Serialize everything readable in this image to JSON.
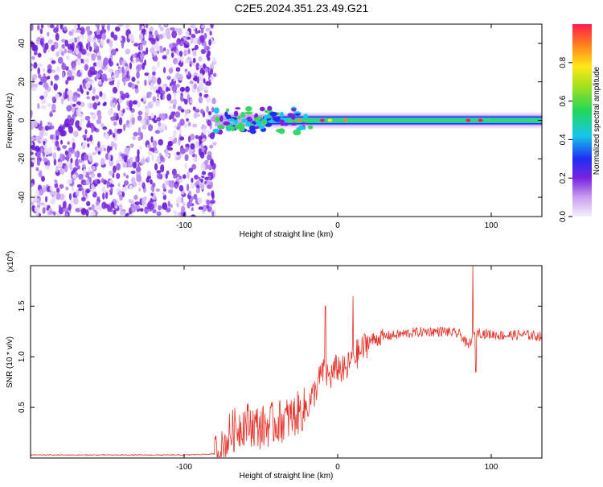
{
  "title": "C2E5.2024.351.23.49.G21",
  "chart_data": [
    {
      "type": "heatmap",
      "xlabel": "Height of straight line (km)",
      "ylabel": "Frequency (Hz)",
      "xlim": [
        -200,
        133
      ],
      "ylim": [
        -50,
        50
      ],
      "xticks": [
        -100,
        0,
        100
      ],
      "yticks": [
        -40,
        -20,
        0,
        20,
        40
      ],
      "noise_region_x": [
        -200,
        -80
      ],
      "signal_region_x": [
        -80,
        133
      ],
      "signal_center_frequency": 0,
      "colorbar": {
        "label": "Normalized spectral amplitude",
        "range": [
          0,
          1
        ],
        "ticks": [
          "0.0",
          "0.2",
          "0.4",
          "0.6",
          "0.8"
        ]
      }
    },
    {
      "type": "line",
      "xlabel": "Height of straight line (km)",
      "ylabel": "SNR (10 * v/v)",
      "multiplier": "(x10^4)",
      "multiplier_base": "(x10",
      "multiplier_exp": "4",
      "xlim": [
        -200,
        133
      ],
      "ylim": [
        0,
        1.9
      ],
      "xticks": [
        -100,
        0,
        100
      ],
      "yticks": [
        "0.5",
        "1.0",
        "1.5"
      ],
      "series": [
        {
          "color": "#e8322a",
          "x": [
            -200,
            -150,
            -100,
            -80,
            -75,
            -70,
            -60,
            -50,
            -40,
            -30,
            -20,
            -15,
            -10,
            -5,
            0,
            5,
            10,
            15,
            20,
            30,
            40,
            50,
            60,
            70,
            80,
            85,
            88,
            90,
            95,
            100,
            110,
            120,
            133
          ],
          "y": [
            0.03,
            0.03,
            0.03,
            0.04,
            0.07,
            0.25,
            0.35,
            0.3,
            0.35,
            0.4,
            0.5,
            0.65,
            0.85,
            0.8,
            0.9,
            0.85,
            1.0,
            1.05,
            1.15,
            1.2,
            1.22,
            1.24,
            1.25,
            1.25,
            1.22,
            1.1,
            1.2,
            1.25,
            1.23,
            1.22,
            1.21,
            1.22,
            1.2
          ]
        }
      ],
      "spikes": [
        {
          "x": -8,
          "y": 1.5
        },
        {
          "x": 10,
          "y": 1.6
        },
        {
          "x": 88,
          "y": 1.9
        },
        {
          "x": 90,
          "y": 0.85
        }
      ]
    }
  ]
}
